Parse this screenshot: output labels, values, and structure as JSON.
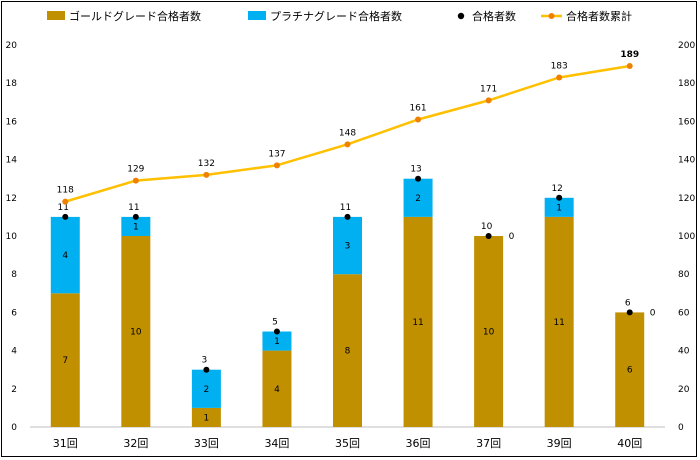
{
  "chart_data": {
    "type": "bar",
    "categories": [
      "31回",
      "32回",
      "33回",
      "34回",
      "35回",
      "36回",
      "37回",
      "39回",
      "40回"
    ],
    "series": [
      {
        "name": "ゴールドグレード合格者数",
        "type": "stacked-bar",
        "axis": "left",
        "color": "#c09000",
        "values": [
          7,
          10,
          1,
          4,
          8,
          11,
          10,
          11,
          6
        ]
      },
      {
        "name": "プラチナグレード合格者数",
        "type": "stacked-bar",
        "axis": "left",
        "color": "#00b0f0",
        "values": [
          4,
          1,
          2,
          1,
          3,
          2,
          0,
          1,
          0
        ]
      },
      {
        "name": "合格者数",
        "type": "point",
        "axis": "left",
        "color": "#000000",
        "values": [
          11,
          11,
          3,
          5,
          11,
          13,
          10,
          12,
          6
        ]
      },
      {
        "name": "合格者数累計",
        "type": "line",
        "axis": "right",
        "color": "#ffc000",
        "marker_color": "#f08000",
        "values": [
          118,
          129,
          132,
          137,
          148,
          161,
          171,
          183,
          189
        ]
      }
    ],
    "gold_labels": [
      "7",
      "10",
      "1",
      "4",
      "8",
      "11",
      "10",
      "11",
      "6"
    ],
    "platinum_labels": [
      "4",
      "1",
      "2",
      "1",
      "3",
      "2",
      "0",
      "1",
      "0"
    ],
    "total_labels": [
      "11",
      "11",
      "3",
      "5",
      "11",
      "13",
      "10",
      "12",
      "6"
    ],
    "cumulative_labels": [
      "118",
      "129",
      "132",
      "137",
      "148",
      "161",
      "171",
      "183",
      "189"
    ],
    "highlight_color": "#ff0000",
    "ylim_left": [
      0,
      20
    ],
    "yticks_left": [
      "0",
      "2",
      "4",
      "6",
      "8",
      "10",
      "12",
      "14",
      "16",
      "18",
      "20"
    ],
    "ylim_right": [
      0,
      200
    ],
    "yticks_right": [
      "0",
      "20",
      "40",
      "60",
      "80",
      "100",
      "120",
      "140",
      "160",
      "180",
      "200"
    ],
    "legend_position": "top",
    "title": "",
    "xlabel": "",
    "ylabel": ""
  }
}
